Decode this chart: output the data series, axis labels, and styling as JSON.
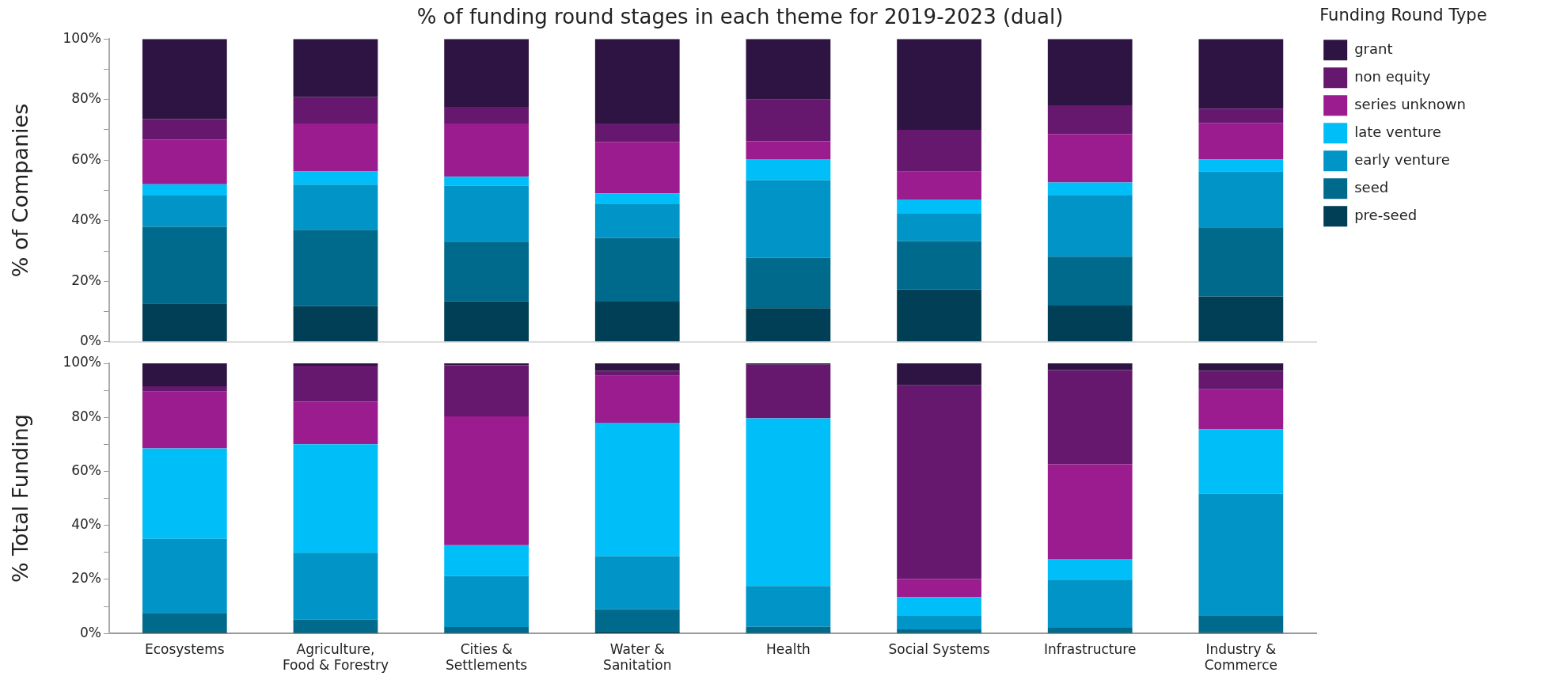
{
  "chart_data": [
    {
      "type": "bar",
      "title": "% of funding round stages in each theme for 2019-2023 (dual)",
      "ylabel": "% of Companies",
      "legend_title": "Funding Round Type",
      "legend": "top right",
      "stacked": true,
      "tick_labels": "y",
      "categories": [
        null,
        null,
        null,
        null,
        null,
        null,
        null,
        null
      ],
      "ylim": [
        0,
        100
      ],
      "yticks": [
        {
          "value": 0,
          "label": "0%"
        },
        {
          "value": 10,
          "label": null
        },
        {
          "value": 20,
          "label": "20%"
        },
        {
          "value": 30,
          "label": null
        },
        {
          "value": 40,
          "label": "40%"
        },
        {
          "value": 50,
          "label": null
        },
        {
          "value": 60,
          "label": "60%"
        },
        {
          "value": 70,
          "label": null
        },
        {
          "value": 80,
          "label": "80%"
        },
        {
          "value": 90,
          "label": null
        },
        {
          "value": 100,
          "label": "100%"
        }
      ],
      "series": [
        {
          "name": "pre-seed",
          "color": "#003f55",
          "values": [
            12.7,
            11.8,
            13.4,
            13.3,
            11.1,
            17.3,
            12.0,
            15.0
          ]
        },
        {
          "name": "seed",
          "color": "#006a8c",
          "values": [
            25.3,
            25.2,
            19.7,
            21.0,
            16.7,
            16.0,
            16.1,
            22.8
          ]
        },
        {
          "name": "early venture",
          "color": "#0095c6",
          "values": [
            10.3,
            14.9,
            18.5,
            11.3,
            25.6,
            9.0,
            20.4,
            18.4
          ]
        },
        {
          "name": "late venture",
          "color": "#00bff8",
          "values": [
            3.7,
            4.4,
            2.9,
            3.4,
            6.9,
            4.7,
            4.1,
            4.0
          ]
        },
        {
          "name": "series unknown",
          "color": "#9b1c8e",
          "values": [
            14.8,
            15.8,
            17.6,
            17.0,
            5.9,
            9.2,
            16.0,
            12.1
          ]
        },
        {
          "name": "non equity",
          "color": "#66186e",
          "values": [
            6.8,
            8.7,
            5.5,
            6.1,
            13.8,
            13.8,
            9.5,
            4.7
          ]
        },
        {
          "name": "grant",
          "color": "#2e1442",
          "values": [
            26.4,
            19.2,
            22.4,
            27.9,
            20.0,
            30.0,
            21.9,
            23.0
          ]
        }
      ]
    },
    {
      "type": "bar",
      "ylabel": "% Total Funding",
      "stacked": true,
      "categories": [
        "Ecosystems",
        "Agriculture, Food & Forestry",
        "Cities & Settlements",
        "Water & Sanitation",
        "Health",
        "Social Systems",
        "Infrastructure",
        "Industry & Commerce"
      ],
      "ylim": [
        0,
        100
      ],
      "yticks": [
        {
          "value": 0,
          "label": "0%"
        },
        {
          "value": 10,
          "label": null
        },
        {
          "value": 20,
          "label": "20%"
        },
        {
          "value": 30,
          "label": null
        },
        {
          "value": 40,
          "label": "40%"
        },
        {
          "value": 50,
          "label": null
        },
        {
          "value": 60,
          "label": "60%"
        },
        {
          "value": 70,
          "label": null
        },
        {
          "value": 80,
          "label": "80%"
        },
        {
          "value": 90,
          "label": null
        },
        {
          "value": 100,
          "label": "100%"
        }
      ],
      "series": [
        {
          "color": "#003f55",
          "values": [
            0.6,
            0.3,
            0.3,
            0.9,
            0.3,
            0.3,
            0.3,
            0.5
          ]
        },
        {
          "color": "#006a8c",
          "values": [
            7.0,
            4.8,
            2.1,
            8.1,
            2.2,
            1.2,
            1.8,
            6.2
          ]
        },
        {
          "color": "#0095c6",
          "values": [
            27.4,
            24.8,
            18.8,
            19.6,
            15.1,
            5.2,
            17.8,
            45.1
          ]
        },
        {
          "color": "#00bff8",
          "values": [
            33.5,
            40.1,
            11.5,
            49.4,
            62.0,
            6.8,
            7.7,
            23.7
          ]
        },
        {
          "color": "#9b1c8e",
          "values": [
            21.0,
            15.8,
            47.7,
            17.4,
            0.2,
            6.7,
            35.0,
            14.9
          ]
        },
        {
          "color": "#66186e",
          "values": [
            2.0,
            13.3,
            18.9,
            1.8,
            19.7,
            71.7,
            34.9,
            6.8
          ]
        },
        {
          "color": "#2e1442",
          "values": [
            8.5,
            0.9,
            0.7,
            2.8,
            0.5,
            8.1,
            2.5,
            2.8
          ]
        }
      ]
    }
  ]
}
